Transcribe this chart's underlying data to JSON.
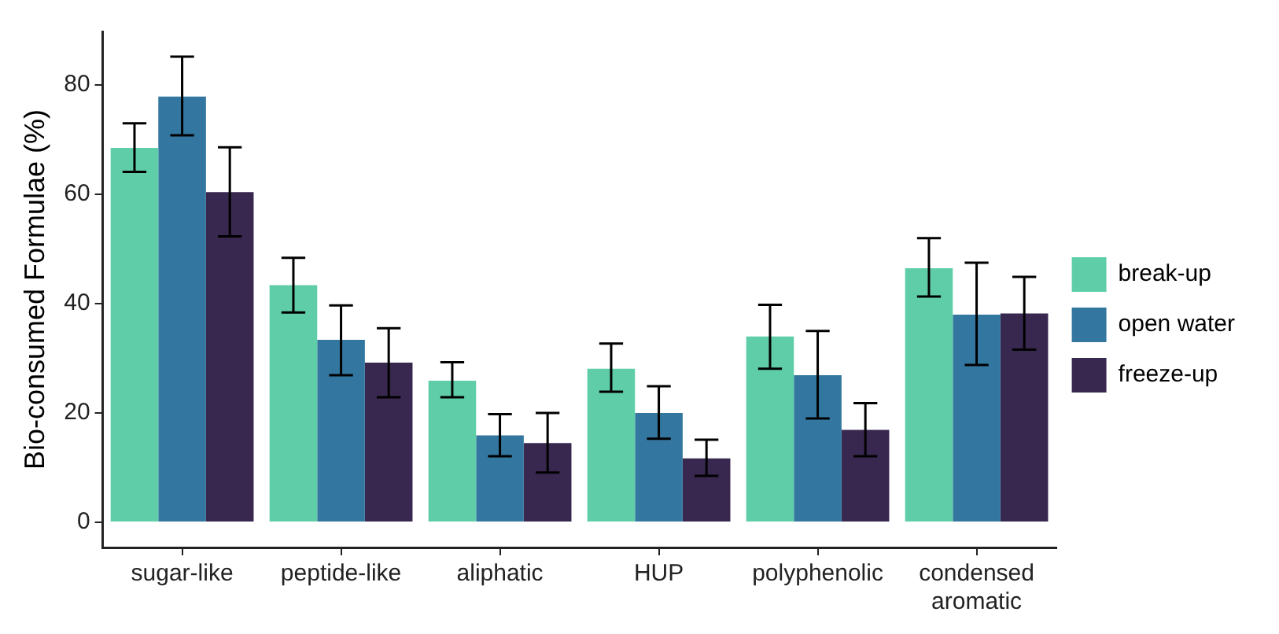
{
  "chart_data": {
    "type": "bar",
    "ylabel": "Bio-consumed Formulae (%)",
    "categories": [
      "sugar-like",
      "peptide-like",
      "aliphatic",
      "HUP",
      "polyphenolic",
      "condensed aromatic"
    ],
    "series": [
      {
        "name": "break-up",
        "color": "#5fcea8",
        "values": [
          68.5,
          43.4,
          25.9,
          28.1,
          34.0,
          46.5
        ],
        "errors": [
          [
            64.1,
            73.0
          ],
          [
            38.4,
            48.4
          ],
          [
            22.9,
            29.3
          ],
          [
            23.9,
            32.7
          ],
          [
            28.1,
            39.8
          ],
          [
            41.3,
            52.0
          ]
        ]
      },
      {
        "name": "open water",
        "color": "#3377a0",
        "values": [
          77.9,
          33.4,
          15.9,
          20.0,
          26.9,
          38.0
        ],
        "errors": [
          [
            70.8,
            85.2
          ],
          [
            26.9,
            39.7
          ],
          [
            12.1,
            19.8
          ],
          [
            15.3,
            24.9
          ],
          [
            19.0,
            35.0
          ],
          [
            28.8,
            47.5
          ]
        ]
      },
      {
        "name": "freeze-up",
        "color": "#38284f",
        "values": [
          60.4,
          29.2,
          14.5,
          11.7,
          16.9,
          38.2
        ],
        "errors": [
          [
            52.3,
            68.6
          ],
          [
            22.9,
            35.5
          ],
          [
            9.1,
            20.0
          ],
          [
            8.5,
            15.1
          ],
          [
            12.1,
            21.8
          ],
          [
            31.6,
            44.9
          ]
        ]
      }
    ],
    "ylim": [
      -4.6,
      89.8
    ],
    "yticks": [
      0,
      20,
      40,
      60,
      80
    ],
    "grid": false,
    "legend": "right"
  }
}
